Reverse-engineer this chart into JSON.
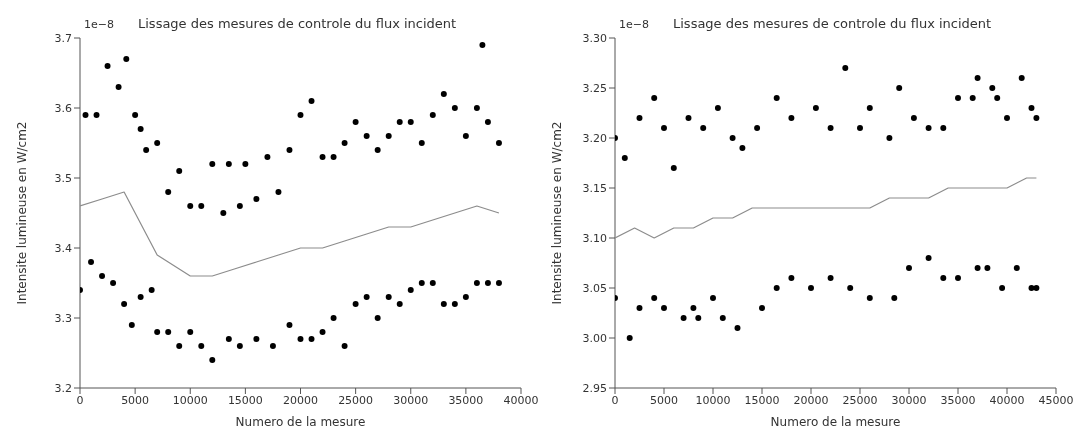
{
  "chart_data": [
    {
      "type": "scatter",
      "title": "Lissage des mesures de controle du flux incident",
      "xlabel": "Numero de la mesure",
      "ylabel": "Intensite lumineuse en W/cm2",
      "annotations": [
        "1e−8"
      ],
      "xlim": [
        0,
        40000
      ],
      "xticks": [
        0,
        5000,
        10000,
        15000,
        20000,
        25000,
        30000,
        35000,
        40000
      ],
      "ylim": [
        3.2,
        3.7
      ],
      "yticks": [
        3.2,
        3.3,
        3.4,
        3.5,
        3.6,
        3.7
      ],
      "grid": false,
      "marker": "circle",
      "series": [
        {
          "color": "#000000",
          "x": [
            500,
            1500,
            2500,
            3500,
            4200,
            5000,
            5500,
            6000,
            7000,
            8000,
            9000,
            10000,
            11000,
            12000,
            13000,
            13500,
            14500,
            15000,
            16000,
            17000,
            18000,
            19000,
            20000,
            21000,
            22000,
            23000,
            24000,
            25000,
            26000,
            27000,
            28000,
            29000,
            30000,
            31000,
            32000,
            33000,
            34000,
            35000,
            36000,
            36500,
            37000,
            38000
          ],
          "values": [
            3.59,
            3.59,
            3.66,
            3.63,
            3.67,
            3.59,
            3.57,
            3.54,
            3.55,
            3.48,
            3.51,
            3.46,
            3.46,
            3.52,
            3.45,
            3.52,
            3.46,
            3.52,
            3.47,
            3.53,
            3.48,
            3.54,
            3.59,
            3.61,
            3.53,
            3.53,
            3.55,
            3.58,
            3.56,
            3.54,
            3.56,
            3.58,
            3.58,
            3.55,
            3.59,
            3.62,
            3.6,
            3.56,
            3.6,
            3.69,
            3.58,
            3.55
          ]
        },
        {
          "color": "#000000",
          "x": [
            0,
            1000,
            2000,
            3000,
            4000,
            4700,
            5500,
            6500,
            7000,
            8000,
            9000,
            10000,
            11000,
            12000,
            13500,
            14500,
            16000,
            17500,
            19000,
            20000,
            21000,
            22000,
            23000,
            24000,
            25000,
            26000,
            27000,
            28000,
            29000,
            30000,
            31000,
            32000,
            33000,
            34000,
            35000,
            36000,
            37000,
            38000
          ],
          "values": [
            3.34,
            3.38,
            3.36,
            3.35,
            3.32,
            3.29,
            3.33,
            3.34,
            3.28,
            3.28,
            3.26,
            3.28,
            3.26,
            3.24,
            3.27,
            3.26,
            3.27,
            3.26,
            3.29,
            3.27,
            3.27,
            3.28,
            3.3,
            3.26,
            3.32,
            3.33,
            3.3,
            3.33,
            3.32,
            3.34,
            3.35,
            3.35,
            3.32,
            3.32,
            3.33,
            3.35,
            3.35,
            3.35
          ]
        },
        {
          "type": "line",
          "marker": "none",
          "color": "#8c8c8c",
          "x": [
            0,
            2000,
            4000,
            5000,
            6000,
            7000,
            8000,
            9000,
            10000,
            12000,
            14000,
            16000,
            18000,
            20000,
            22000,
            24000,
            26000,
            28000,
            30000,
            32000,
            34000,
            36000,
            38000
          ],
          "values": [
            3.46,
            3.47,
            3.48,
            3.45,
            3.42,
            3.39,
            3.38,
            3.37,
            3.36,
            3.36,
            3.37,
            3.38,
            3.39,
            3.4,
            3.4,
            3.41,
            3.42,
            3.43,
            3.43,
            3.44,
            3.45,
            3.46,
            3.45
          ]
        }
      ]
    },
    {
      "type": "scatter",
      "title": "Lissage des mesures de controle du flux incident",
      "xlabel": "Numero de la mesure",
      "ylabel": "Intensite lumineuse en W/cm2",
      "annotations": [
        "1e−8"
      ],
      "xlim": [
        0,
        45000
      ],
      "xticks": [
        0,
        5000,
        10000,
        15000,
        20000,
        25000,
        30000,
        35000,
        40000,
        45000
      ],
      "ylim": [
        2.95,
        3.3
      ],
      "yticks": [
        2.95,
        {
          "value": 3.0,
          "label": "3.00"
        },
        3.05,
        {
          "value": 3.1,
          "label": "3.10"
        },
        3.15,
        {
          "value": 3.2,
          "label": "3.20"
        },
        3.25,
        {
          "value": 3.3,
          "label": "3.30"
        }
      ],
      "grid": false,
      "marker": "circle",
      "series": [
        {
          "color": "#000000",
          "x": [
            0,
            1000,
            2500,
            4000,
            5000,
            6000,
            7500,
            9000,
            10500,
            12000,
            13000,
            14500,
            16500,
            18000,
            20500,
            22000,
            23500,
            25000,
            26000,
            28000,
            29000,
            30500,
            32000,
            33500,
            35000,
            36500,
            37000,
            38500,
            39000,
            40000,
            41500,
            42500,
            43000
          ],
          "values": [
            3.2,
            3.18,
            3.22,
            3.24,
            3.21,
            3.17,
            3.22,
            3.21,
            3.23,
            3.2,
            3.19,
            3.21,
            3.24,
            3.22,
            3.23,
            3.21,
            3.27,
            3.21,
            3.23,
            3.2,
            3.25,
            3.22,
            3.21,
            3.21,
            3.24,
            3.24,
            3.26,
            3.25,
            3.24,
            3.22,
            3.26,
            3.23,
            3.22
          ]
        },
        {
          "color": "#000000",
          "x": [
            0,
            1500,
            2500,
            4000,
            5000,
            7000,
            8000,
            8500,
            10000,
            11000,
            12500,
            15000,
            16500,
            18000,
            20000,
            22000,
            24000,
            26000,
            28500,
            30000,
            32000,
            33500,
            35000,
            37000,
            38000,
            39500,
            41000,
            42500,
            43000
          ],
          "values": [
            3.04,
            3.0,
            3.03,
            3.04,
            3.03,
            3.02,
            3.03,
            3.02,
            3.04,
            3.02,
            3.01,
            3.03,
            3.05,
            3.06,
            3.05,
            3.06,
            3.05,
            3.04,
            3.04,
            3.07,
            3.08,
            3.06,
            3.06,
            3.07,
            3.07,
            3.05,
            3.07,
            3.05,
            3.05
          ]
        },
        {
          "type": "line",
          "marker": "none",
          "color": "#8c8c8c",
          "x": [
            0,
            2000,
            4000,
            6000,
            8000,
            10000,
            12000,
            14000,
            16000,
            18000,
            20000,
            22000,
            24000,
            26000,
            28000,
            30000,
            32000,
            34000,
            36000,
            38000,
            40000,
            42000,
            43000
          ],
          "values": [
            3.1,
            3.11,
            3.1,
            3.11,
            3.11,
            3.12,
            3.12,
            3.13,
            3.13,
            3.13,
            3.13,
            3.13,
            3.13,
            3.13,
            3.14,
            3.14,
            3.14,
            3.15,
            3.15,
            3.15,
            3.15,
            3.16,
            3.16
          ]
        }
      ]
    }
  ]
}
